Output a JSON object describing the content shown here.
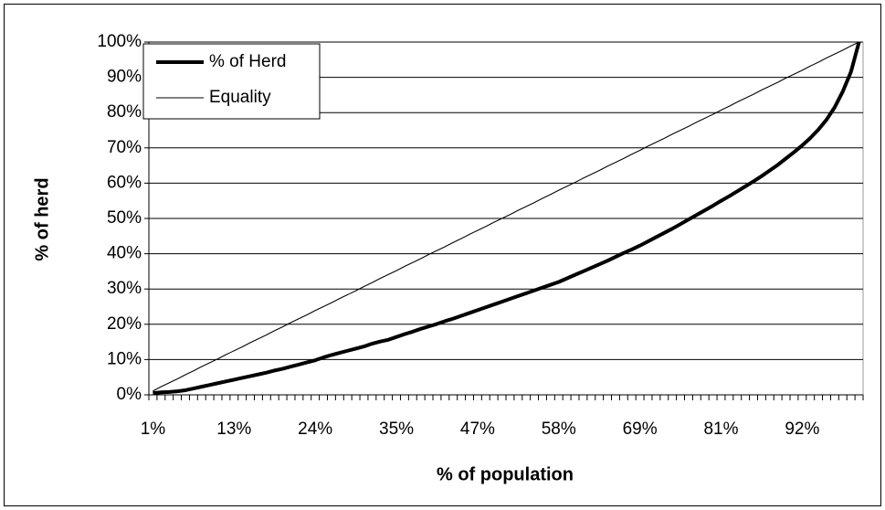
{
  "chart_data": {
    "type": "line",
    "x_label": "% of population",
    "y_label": "% of herd",
    "categories": [
      "1%",
      null,
      null,
      null,
      null,
      null,
      null,
      null,
      null,
      null,
      "13%",
      null,
      null,
      null,
      null,
      null,
      null,
      null,
      null,
      null,
      "24%",
      null,
      null,
      null,
      null,
      null,
      null,
      null,
      null,
      null,
      "35%",
      null,
      null,
      null,
      null,
      null,
      null,
      null,
      null,
      null,
      "47%",
      null,
      null,
      null,
      null,
      null,
      null,
      null,
      null,
      null,
      "58%",
      null,
      null,
      null,
      null,
      null,
      null,
      null,
      null,
      null,
      "69%",
      null,
      null,
      null,
      null,
      null,
      null,
      null,
      null,
      null,
      "81%",
      null,
      null,
      null,
      null,
      null,
      null,
      null,
      null,
      null,
      "92%",
      null,
      null,
      null,
      null,
      null,
      null,
      null
    ],
    "series": [
      {
        "name": "% of Herd",
        "color": "#000000",
        "values": [
          0.5,
          0.7,
          0.8,
          1.0,
          1.3,
          1.8,
          2.3,
          2.8,
          3.3,
          3.8,
          4.3,
          4.8,
          5.3,
          5.8,
          6.3,
          6.9,
          7.4,
          8.0,
          8.6,
          9.2,
          9.8,
          10.6,
          11.3,
          11.9,
          12.5,
          13.1,
          13.7,
          14.5,
          15.1,
          15.6,
          16.4,
          17.2,
          17.9,
          18.7,
          19.4,
          20.1,
          20.9,
          21.6,
          22.4,
          23.2,
          24.0,
          24.8,
          25.6,
          26.4,
          27.2,
          28.0,
          28.8,
          29.6,
          30.4,
          31.2,
          32.0,
          33.0,
          34.0,
          35.0,
          36.0,
          37.0,
          38.0,
          39.1,
          40.2,
          41.2,
          42.3,
          43.5,
          44.7,
          45.9,
          47.1,
          48.4,
          49.7,
          51.0,
          52.3,
          53.6,
          55.0,
          56.3,
          57.7,
          59.1,
          60.5,
          62.0,
          63.6,
          65.2,
          67.0,
          68.8,
          70.7,
          72.8,
          75.2,
          78.0,
          81.5,
          86.0,
          91.5,
          100
        ]
      },
      {
        "name": "Equality",
        "color": "#000000",
        "values": [
          1.1,
          2.3,
          3.4,
          4.5,
          5.7,
          6.8,
          8.0,
          9.1,
          10.2,
          11.4,
          12.5,
          13.6,
          14.8,
          15.9,
          17.0,
          18.2,
          19.3,
          20.5,
          21.6,
          22.7,
          23.9,
          25.0,
          26.1,
          27.3,
          28.4,
          29.5,
          30.7,
          31.8,
          33.0,
          34.1,
          35.2,
          36.4,
          37.5,
          38.6,
          39.8,
          40.9,
          42.0,
          43.2,
          44.3,
          45.5,
          46.6,
          47.7,
          48.9,
          50.0,
          51.1,
          52.3,
          53.4,
          54.5,
          55.7,
          56.8,
          58.0,
          59.1,
          60.2,
          61.4,
          62.5,
          63.6,
          64.8,
          65.9,
          67.0,
          68.2,
          69.3,
          70.5,
          71.6,
          72.7,
          73.9,
          75.0,
          76.1,
          77.3,
          78.4,
          79.5,
          80.7,
          81.8,
          83.0,
          84.1,
          85.2,
          86.4,
          87.5,
          88.6,
          89.8,
          90.9,
          92.0,
          93.2,
          94.3,
          95.5,
          96.6,
          97.7,
          98.9,
          100.0
        ]
      }
    ],
    "ylim": [
      0,
      100
    ],
    "yticks": [
      {
        "value": 0,
        "label": "0%"
      },
      {
        "value": 10,
        "label": "10%"
      },
      {
        "value": 20,
        "label": "20%"
      },
      {
        "value": 30,
        "label": "30%"
      },
      {
        "value": 40,
        "label": "40%"
      },
      {
        "value": 50,
        "label": "50%"
      },
      {
        "value": 60,
        "label": "60%"
      },
      {
        "value": 70,
        "label": "70%"
      },
      {
        "value": 80,
        "label": "80%"
      },
      {
        "value": 90,
        "label": "90%"
      },
      {
        "value": 100,
        "label": "100%"
      }
    ],
    "grid": true,
    "legend": "top-left"
  }
}
